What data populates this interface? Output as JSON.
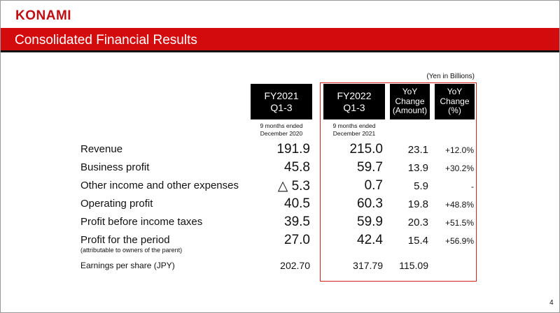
{
  "logo": "KONAMI",
  "title": "Consolidated Financial Results",
  "unit": "(Yen in Billions)",
  "headers": {
    "fy2021": [
      "FY2021",
      "Q1-3"
    ],
    "fy2022": [
      "FY2022",
      "Q1-3"
    ],
    "yoy_amount": [
      "YoY",
      "Change",
      "(Amount)"
    ],
    "yoy_pct": [
      "YoY",
      "Change",
      "(%)"
    ]
  },
  "periods": {
    "fy2021": [
      "9 months ended",
      "December 2020"
    ],
    "fy2022": [
      "9 months ended",
      "December 2021"
    ]
  },
  "rows": [
    {
      "label": "Revenue",
      "fy2021": "191.9",
      "fy2022": "215.0",
      "amount": "23.1",
      "pct": "+12.0%"
    },
    {
      "label": "Business profit",
      "fy2021": "45.8",
      "fy2022": "59.7",
      "amount": "13.9",
      "pct": "+30.2%"
    },
    {
      "label": "Other income and other expenses",
      "fy2021": "△ 5.3",
      "fy2022": "0.7",
      "amount": "5.9",
      "pct": "-"
    },
    {
      "label": "Operating profit",
      "fy2021": "40.5",
      "fy2022": "60.3",
      "amount": "19.8",
      "pct": "+48.8%"
    },
    {
      "label": "Profit before income taxes",
      "fy2021": "39.5",
      "fy2022": "59.9",
      "amount": "20.3",
      "pct": "+51.5%"
    },
    {
      "label": "Profit for the period",
      "sublabel": "(attributable to owners of the parent)",
      "fy2021": "27.0",
      "fy2022": "42.4",
      "amount": "15.4",
      "pct": "+56.9%"
    }
  ],
  "eps": {
    "label": "Earnings per share (JPY)",
    "fy2021": "202.70",
    "fy2022": "317.79",
    "amount": "115.09"
  },
  "page_number": "4"
}
